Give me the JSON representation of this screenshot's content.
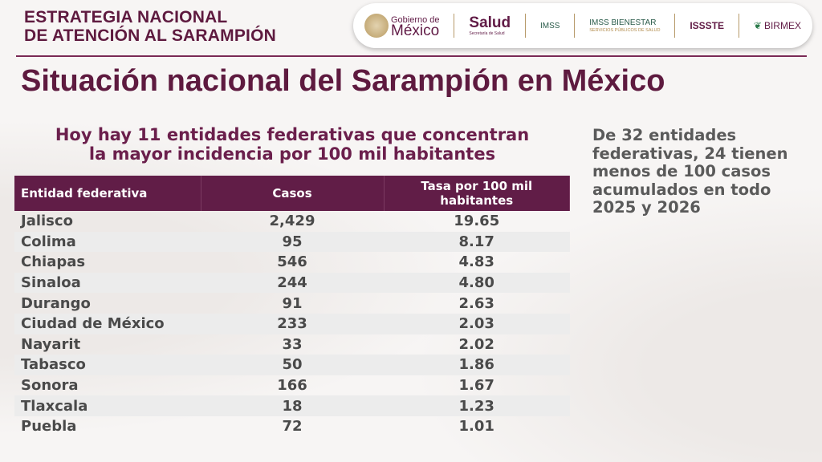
{
  "header": {
    "strategy_line1": "ESTRATEGIA NACIONAL",
    "strategy_line2": "DE ATENCIÓN AL SARAMPIÓN",
    "logos": {
      "gobierno_small": "Gobierno de",
      "gobierno_big": "México",
      "salud": "Salud",
      "salud_sub": "Secretaría de Salud",
      "imss": "IMSS",
      "imss_bienestar": "IMSS BIENESTAR",
      "imss_bienestar_sub": "SERVICIOS PÚBLICOS DE SALUD",
      "issste": "ISSSTE",
      "birmex": "BIRMEX"
    }
  },
  "title": "Situación nacional del Sarampión en México",
  "subtitle_line1": "Hoy hay 11 entidades federativas que concentran",
  "subtitle_line2": "la mayor incidencia por 100 mil habitantes",
  "side_note": "De 32 entidades federativas, 24 tienen menos de 100 casos acumulados en todo 2025 y 2026",
  "table": {
    "headers": [
      "Entidad federativa",
      "Casos",
      "Tasa por 100 mil habitantes"
    ],
    "rows": [
      [
        "Jalisco",
        "2,429",
        "19.65"
      ],
      [
        "Colima",
        "95",
        "8.17"
      ],
      [
        "Chiapas",
        "546",
        "4.83"
      ],
      [
        "Sinaloa",
        "244",
        "4.80"
      ],
      [
        "Durango",
        "91",
        "2.63"
      ],
      [
        "Ciudad de México",
        "233",
        "2.03"
      ],
      [
        "Nayarit",
        "33",
        "2.02"
      ],
      [
        "Tabasco",
        "50",
        "1.86"
      ],
      [
        "Sonora",
        "166",
        "1.67"
      ],
      [
        "Tlaxcala",
        "18",
        "1.23"
      ],
      [
        "Puebla",
        "72",
        "1.01"
      ]
    ]
  },
  "colors": {
    "brand": "#611d47",
    "title": "#5e1a3f",
    "row_alt": "#ececec"
  }
}
